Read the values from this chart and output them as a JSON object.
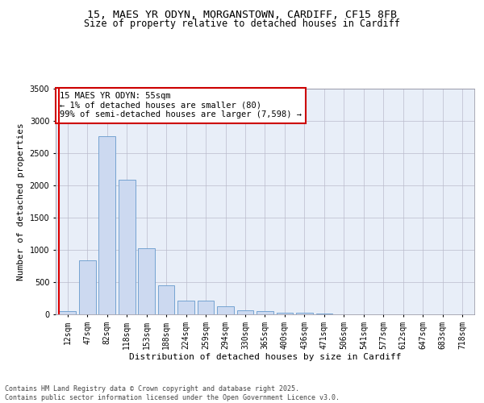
{
  "title_line1": "15, MAES YR ODYN, MORGANSTOWN, CARDIFF, CF15 8FB",
  "title_line2": "Size of property relative to detached houses in Cardiff",
  "xlabel": "Distribution of detached houses by size in Cardiff",
  "ylabel": "Number of detached properties",
  "bar_color": "#ccd9f0",
  "bar_edge_color": "#6699cc",
  "background_color": "#e8eef8",
  "grid_color": "#bbbbcc",
  "categories": [
    "12sqm",
    "47sqm",
    "82sqm",
    "118sqm",
    "153sqm",
    "188sqm",
    "224sqm",
    "259sqm",
    "294sqm",
    "330sqm",
    "365sqm",
    "400sqm",
    "436sqm",
    "471sqm",
    "506sqm",
    "541sqm",
    "577sqm",
    "612sqm",
    "647sqm",
    "683sqm",
    "718sqm"
  ],
  "values": [
    55,
    840,
    2760,
    2090,
    1020,
    450,
    215,
    215,
    130,
    60,
    45,
    30,
    20,
    10,
    5,
    0,
    0,
    0,
    0,
    0,
    0
  ],
  "highlight_index": 0,
  "annotation_text": "15 MAES YR ODYN: 55sqm\n← 1% of detached houses are smaller (80)\n99% of semi-detached houses are larger (7,598) →",
  "ylim": [
    0,
    3500
  ],
  "yticks": [
    0,
    500,
    1000,
    1500,
    2000,
    2500,
    3000,
    3500
  ],
  "footnote": "Contains HM Land Registry data © Crown copyright and database right 2025.\nContains public sector information licensed under the Open Government Licence v3.0.",
  "title_fontsize": 9.5,
  "subtitle_fontsize": 8.5,
  "axis_label_fontsize": 8,
  "tick_fontsize": 7,
  "annotation_fontsize": 7.5,
  "footnote_fontsize": 6
}
